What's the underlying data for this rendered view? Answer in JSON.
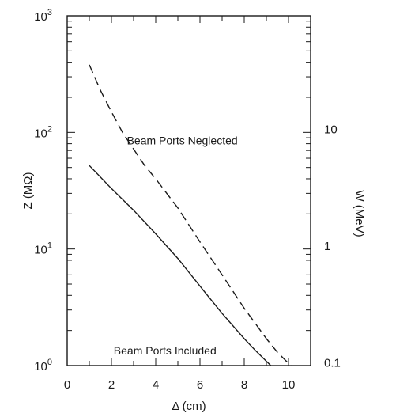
{
  "chart_data": {
    "type": "line",
    "title": "",
    "xlabel": "Δ (cm)",
    "ylabel_left": "Z (MΩ)",
    "ylabel_right": "W (MeV)",
    "y_scale": "log",
    "xlim": [
      0,
      11
    ],
    "ylim": [
      1,
      1000
    ],
    "grid": false,
    "x_ticks": [
      {
        "value": 0,
        "label": "0"
      },
      {
        "value": 2,
        "label": "2"
      },
      {
        "value": 4,
        "label": "4"
      },
      {
        "value": 6,
        "label": "6"
      },
      {
        "value": 8,
        "label": "8"
      },
      {
        "value": 10,
        "label": "10"
      }
    ],
    "y_ticks_left": [
      {
        "value": 1,
        "base": "10",
        "exp": "0"
      },
      {
        "value": 10,
        "base": "10",
        "exp": "1"
      },
      {
        "value": 100,
        "base": "10",
        "exp": "2"
      },
      {
        "value": 1000,
        "base": "10",
        "exp": "3"
      }
    ],
    "y_ticks_right": [
      {
        "value": 1.06,
        "label": "0.1"
      },
      {
        "value": 10.6,
        "label": "1"
      },
      {
        "value": 106,
        "label": "10"
      }
    ],
    "series": [
      {
        "name": "Beam Ports Neglected",
        "style": "dashed",
        "x": [
          1.0,
          1.5,
          2.0,
          2.5,
          3.0,
          3.5,
          4.0,
          5.0,
          6.0,
          7.0,
          8.0,
          8.5,
          9.0,
          9.5,
          10.1
        ],
        "y": [
          380,
          230,
          150,
          100,
          72,
          52,
          40,
          22.5,
          11.5,
          6.0,
          3.1,
          2.3,
          1.7,
          1.3,
          1.0
        ]
      },
      {
        "name": "Beam Ports Included",
        "style": "solid",
        "x": [
          1.0,
          2.0,
          3.0,
          4.0,
          5.0,
          6.0,
          7.0,
          8.0,
          8.5,
          9.2
        ],
        "y": [
          52,
          33,
          21.5,
          13.5,
          8.3,
          4.8,
          2.8,
          1.7,
          1.35,
          1.0
        ]
      }
    ],
    "annotations": [
      {
        "text": "Beam Ports Neglected",
        "x": 2.7,
        "y": 85,
        "anchor": "start"
      },
      {
        "text": "Beam Ports Included",
        "x": 2.1,
        "y": 1.35,
        "anchor": "start"
      }
    ]
  }
}
